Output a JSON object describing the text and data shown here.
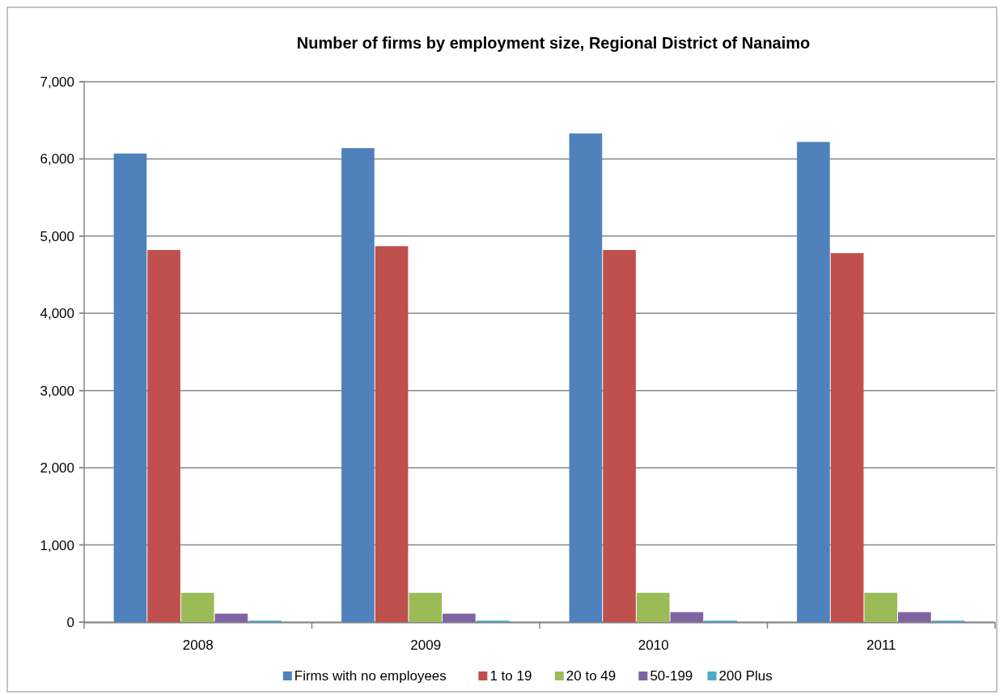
{
  "chart_data": {
    "type": "bar",
    "title": "Number of firms by employment size, Regional District of Nanaimo",
    "categories": [
      "2008",
      "2009",
      "2010",
      "2011"
    ],
    "series": [
      {
        "name": "Firms with no employees",
        "color": "#4f81bd",
        "values": [
          6070,
          6140,
          6330,
          6220
        ]
      },
      {
        "name": "1 to 19",
        "color": "#c0504d",
        "values": [
          4820,
          4870,
          4820,
          4780
        ]
      },
      {
        "name": "20 to 49",
        "color": "#9bbb59",
        "values": [
          380,
          380,
          380,
          380
        ]
      },
      {
        "name": "50-199",
        "color": "#8064a2",
        "values": [
          110,
          110,
          130,
          130
        ]
      },
      {
        "name": "200 Plus",
        "color": "#4bacc6",
        "values": [
          20,
          20,
          20,
          20
        ]
      }
    ],
    "ylim": [
      0,
      7000
    ],
    "yticks": [
      {
        "value": 0,
        "label": "0"
      },
      {
        "value": 1000,
        "label": "1,000"
      },
      {
        "value": 2000,
        "label": "2,000"
      },
      {
        "value": 3000,
        "label": "3,000"
      },
      {
        "value": 4000,
        "label": "4,000"
      },
      {
        "value": 5000,
        "label": "5,000"
      },
      {
        "value": 6000,
        "label": "6,000"
      },
      {
        "value": 7000,
        "label": "7,000"
      }
    ],
    "grid": "y",
    "legend": "bottom"
  }
}
